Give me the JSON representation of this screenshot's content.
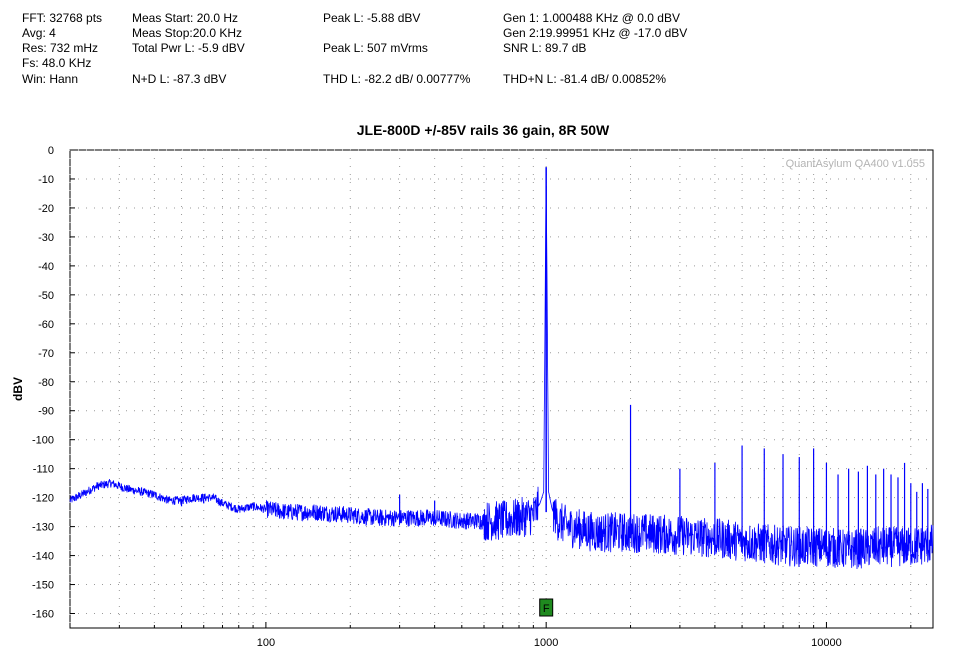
{
  "stats": {
    "fft": "FFT: 32768 pts",
    "avg": "Avg: 4",
    "res": "Res: 732 mHz",
    "fs": "Fs: 48.0 KHz",
    "win": "Win: Hann",
    "meas_start": "Meas Start: 20.0 Hz",
    "meas_stop": "Meas Stop:20.0 KHz",
    "total_pwr": "Total Pwr L: -5.9 dBV",
    "nd": "N+D L: -87.3 dBV",
    "peak_dbv": "Peak L: -5.88 dBV",
    "peak_vrms": "Peak L: 507 mVrms",
    "thd": "THD L: -82.2 dB/ 0.00777%",
    "gen1": "Gen 1: 1.000488 KHz @ 0.0  dBV",
    "gen2": "Gen 2:19.99951 KHz @ -17.0  dBV",
    "snr": "SNR L: 89.7 dB",
    "thdn": "THD+N L: -81.4 dB/ 0.00852%"
  },
  "chart_data": {
    "type": "line",
    "title": "JLE-800D +/-85V rails 36 gain, 8R 50W",
    "watermark": "QuantAsylum QA400 v1.055",
    "xlabel": "",
    "ylabel": "dBV",
    "x_scale": "log",
    "xlim": [
      20,
      24000
    ],
    "ylim": [
      -165,
      0
    ],
    "x_ticks": [
      100,
      1000,
      10000
    ],
    "x_tick_labels": [
      "100",
      "1000",
      "10000"
    ],
    "y_ticks": [
      0,
      -10,
      -20,
      -30,
      -40,
      -50,
      -60,
      -70,
      -80,
      -90,
      -100,
      -110,
      -120,
      -130,
      -140,
      -150,
      -160
    ],
    "grid": true,
    "marker_label": "F",
    "marker_x": 1000,
    "line_color": "#0000ff",
    "series": [
      {
        "values": [
          [
            20,
            -121
          ],
          [
            22,
            -119
          ],
          [
            25,
            -116
          ],
          [
            28,
            -115
          ],
          [
            32,
            -117
          ],
          [
            36,
            -118
          ],
          [
            40,
            -119
          ],
          [
            45,
            -121
          ],
          [
            50,
            -121
          ],
          [
            55,
            -120
          ],
          [
            60,
            -120
          ],
          [
            65,
            -120
          ],
          [
            70,
            -122
          ],
          [
            80,
            -124
          ],
          [
            90,
            -123
          ],
          [
            100,
            -124
          ],
          [
            120,
            -125
          ],
          [
            150,
            -125
          ],
          [
            200,
            -126
          ],
          [
            250,
            -127
          ],
          [
            300,
            -127
          ],
          [
            400,
            -127
          ],
          [
            500,
            -128
          ],
          [
            600,
            -128
          ],
          [
            700,
            -128
          ],
          [
            800,
            -127
          ],
          [
            900,
            -126
          ],
          [
            950,
            -122
          ],
          [
            980,
            -118
          ],
          [
            1000,
            -5.9
          ],
          [
            1020,
            -118
          ],
          [
            1050,
            -124
          ],
          [
            1100,
            -128
          ],
          [
            1200,
            -130
          ],
          [
            1500,
            -132
          ],
          [
            2000,
            -132
          ],
          [
            3000,
            -133
          ],
          [
            4000,
            -134
          ],
          [
            5000,
            -135
          ],
          [
            6000,
            -136
          ],
          [
            8000,
            -137
          ],
          [
            10000,
            -137
          ],
          [
            12000,
            -138
          ],
          [
            15000,
            -137
          ],
          [
            20000,
            -137
          ],
          [
            24000,
            -136
          ]
        ]
      }
    ],
    "spurs": [
      [
        50,
        -122
      ],
      [
        60,
        -121
      ],
      [
        300,
        -119
      ],
      [
        400,
        -121
      ],
      [
        2000,
        -88
      ],
      [
        3000,
        -110
      ],
      [
        4000,
        -108
      ],
      [
        5000,
        -102
      ],
      [
        6000,
        -103
      ],
      [
        7000,
        -105
      ],
      [
        8000,
        -106
      ],
      [
        9000,
        -103
      ],
      [
        10000,
        -108
      ],
      [
        11000,
        -112
      ],
      [
        12000,
        -110
      ],
      [
        13000,
        -111
      ],
      [
        14000,
        -109
      ],
      [
        15000,
        -112
      ],
      [
        16000,
        -110
      ],
      [
        17000,
        -112
      ],
      [
        18000,
        -113
      ],
      [
        19000,
        -108
      ],
      [
        20000,
        -115
      ],
      [
        21000,
        -118
      ],
      [
        22000,
        -115
      ],
      [
        23000,
        -117
      ]
    ]
  }
}
